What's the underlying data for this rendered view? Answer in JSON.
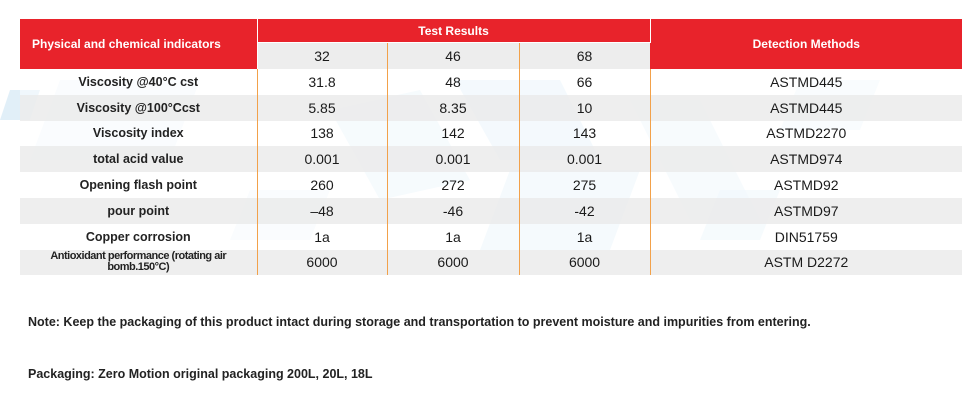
{
  "colors": {
    "header_red": "#e8232b",
    "divider_orange": "#f2a14a",
    "alt_row_gray": "#ececec"
  },
  "table": {
    "header": {
      "indicators": "Physical and chemical indicators",
      "results": "Test Results",
      "methods": "Detection Methods",
      "grades": [
        "32",
        "46",
        "68"
      ]
    },
    "rows": [
      {
        "label": "Viscosity @40°C cst",
        "values": [
          "31.8",
          "48",
          "66"
        ],
        "method": "ASTMD445"
      },
      {
        "label": "Viscosity @100°Ccst",
        "values": [
          "5.85",
          "8.35",
          "10"
        ],
        "method": "ASTMD445"
      },
      {
        "label": "Viscosity index",
        "values": [
          "138",
          "142",
          "143"
        ],
        "method": "ASTMD2270"
      },
      {
        "label": "total acid value",
        "values": [
          "0.001",
          "0.001",
          "0.001"
        ],
        "method": "ASTMD974"
      },
      {
        "label": "Opening flash point",
        "values": [
          "260",
          "272",
          "275"
        ],
        "method": "ASTMD92"
      },
      {
        "label": "pour point",
        "values": [
          "–48",
          "-46",
          "-42"
        ],
        "method": "ASTMD97"
      },
      {
        "label": "Copper corrosion",
        "values": [
          "1a",
          "1a",
          "1a"
        ],
        "method": "DIN51759"
      },
      {
        "label_line1": "Antioxidant performance (rotating air",
        "label_line2": "bomb.150°C)",
        "values": [
          "6000",
          "6000",
          "6000"
        ],
        "method": "ASTM D2272"
      }
    ]
  },
  "note": "Note: Keep the packaging of this product intact during storage and transportation to prevent moisture and impurities from entering.",
  "packaging": "Packaging: Zero Motion original packaging 200L, 20L, 18L"
}
